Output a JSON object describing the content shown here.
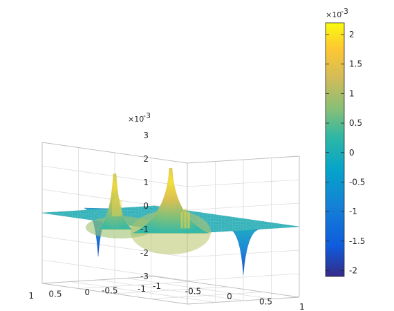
{
  "chart_data": {
    "type": "surface",
    "title": "",
    "xlabel": "",
    "ylabel": "",
    "zlabel": "",
    "x_range": [
      -1,
      1
    ],
    "y_range": [
      -1,
      1
    ],
    "zlim": [
      -3,
      3
    ],
    "z_exponent_label": "×10",
    "z_exponent_power": "-3",
    "x_ticks": [
      "-1",
      "-0.5",
      "0",
      "0.5",
      "1"
    ],
    "y_ticks": [
      "-1",
      "-0.5",
      "0",
      "0.5",
      "1"
    ],
    "z_ticks": [
      "-3",
      "-2",
      "-1",
      "0",
      "1",
      "2",
      "3"
    ],
    "grid": true,
    "colormap": "parula",
    "colorbar": {
      "position": "right",
      "range": [
        -2.1,
        2.2
      ],
      "exponent_label": "×10",
      "exponent_power": "-3",
      "ticks": [
        "-2",
        "-1.5",
        "-1",
        "-0.5",
        "0",
        "0.5",
        "1",
        "1.5",
        "2"
      ]
    },
    "features": [
      {
        "kind": "peak",
        "x": 0.0,
        "y": 0.0,
        "z": 2.2
      },
      {
        "kind": "peak",
        "x": 0.0,
        "y": 1.0,
        "z": 2.1
      },
      {
        "kind": "dip",
        "x": -1.0,
        "y": 0.0,
        "z": -2.0
      },
      {
        "kind": "dip",
        "x": 1.0,
        "y": 0.0,
        "z": -1.9
      },
      {
        "kind": "spike",
        "x": -0.55,
        "y": 0.25,
        "z": 0.8
      },
      {
        "kind": "spike",
        "x": 0.55,
        "y": 0.45,
        "z": 0.8
      }
    ]
  }
}
